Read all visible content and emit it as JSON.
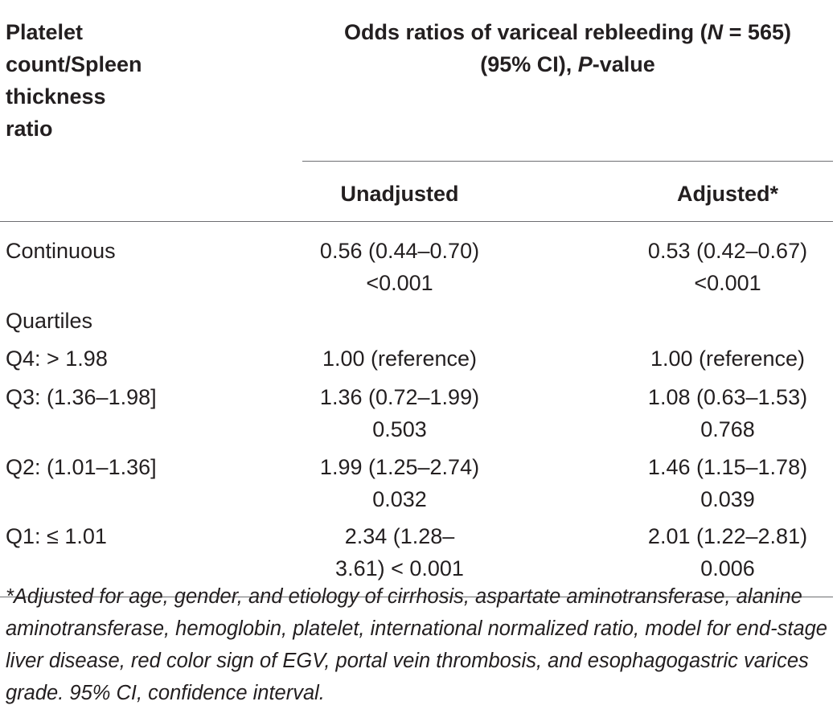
{
  "header": {
    "row_label_lines": [
      "Platelet",
      "count/Spleen",
      "thickness",
      "ratio"
    ],
    "group_title_part1": "Odds ratios of variceal rebleeding (",
    "group_title_n": "N",
    "group_title_part2": " = 565)",
    "group_subtitle_part1": "(95% CI), ",
    "group_subtitle_p": "P",
    "group_subtitle_part2": "-value",
    "col_unadjusted": "Unadjusted",
    "col_adjusted": "Adjusted*"
  },
  "rows": [
    {
      "label": "Continuous",
      "unadj": [
        "0.56 (0.44–0.70)",
        "<0.001"
      ],
      "adj": [
        "0.53 (0.42–0.67)",
        "<0.001"
      ]
    },
    {
      "label": "Quartiles",
      "unadj": [],
      "adj": []
    },
    {
      "label": "Q4: > 1.98",
      "unadj": [
        "1.00 (reference)"
      ],
      "adj": [
        "1.00 (reference)"
      ]
    },
    {
      "label": "Q3: (1.36–1.98]",
      "unadj": [
        "1.36 (0.72–1.99)",
        "0.503"
      ],
      "adj": [
        "1.08 (0.63–1.53)",
        "0.768"
      ]
    },
    {
      "label": "Q2: (1.01–1.36]",
      "unadj": [
        "1.99 (1.25–2.74)",
        "0.032"
      ],
      "adj": [
        "1.46 (1.15–1.78)",
        "0.039"
      ]
    },
    {
      "label": "Q1: ≤ 1.01",
      "unadj": [
        "2.34 (1.28–",
        "3.61) < 0.001"
      ],
      "adj": [
        "2.01 (1.22–2.81)",
        "0.006"
      ]
    }
  ],
  "footnote": "*Adjusted for age, gender, and etiology of cirrhosis, aspartate aminotransferase, alanine aminotransferase, hemoglobin, platelet, international normalized ratio, model for end-stage liver disease, red color sign of EGV, portal vein thrombosis, and esophagogastric varices grade. 95% CI, confidence interval."
}
